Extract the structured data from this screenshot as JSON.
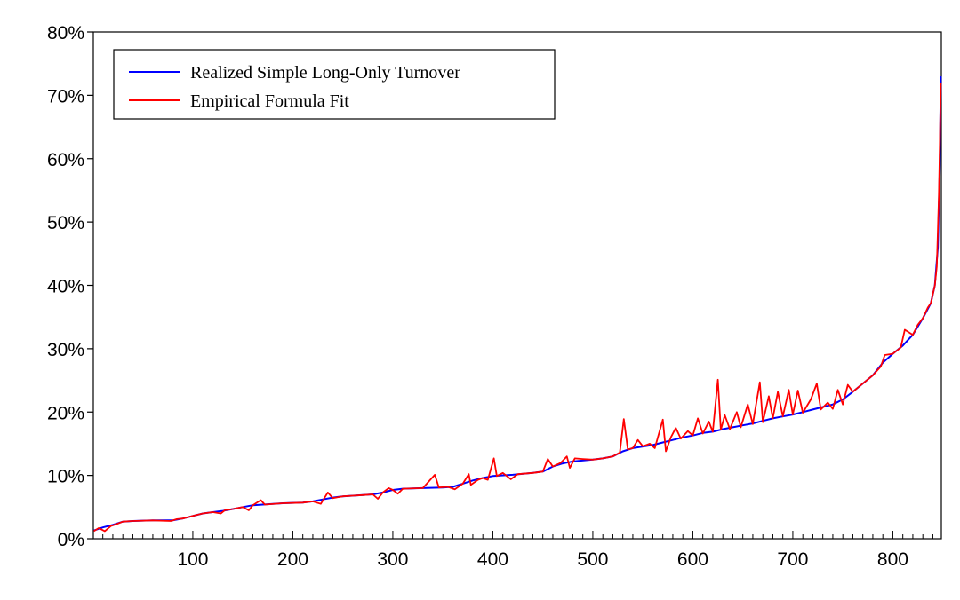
{
  "chart_data": {
    "type": "line",
    "title": "",
    "xlabel": "",
    "ylabel": "",
    "xlim": [
      1,
      848
    ],
    "ylim": [
      0,
      0.8
    ],
    "y_format": "percent",
    "x_ticks": [
      100,
      200,
      300,
      400,
      500,
      600,
      700,
      800
    ],
    "x_tick_labels": [
      "100",
      "200",
      "300",
      "400",
      "500",
      "600",
      "700",
      "800"
    ],
    "y_ticks": [
      0,
      0.1,
      0.2,
      0.3,
      0.4,
      0.5,
      0.6,
      0.7,
      0.8
    ],
    "y_tick_labels": [
      "0%",
      "10%",
      "20%",
      "30%",
      "40%",
      "50%",
      "60%",
      "70%",
      "80%"
    ],
    "grid": false,
    "legend_position": "top-left",
    "series": [
      {
        "name": "Realized Simple Long-Only Turnover",
        "color": "#0000ff",
        "points": [
          [
            1,
            0.013
          ],
          [
            10,
            0.018
          ],
          [
            20,
            0.022
          ],
          [
            30,
            0.027
          ],
          [
            40,
            0.028
          ],
          [
            60,
            0.029
          ],
          [
            80,
            0.029
          ],
          [
            90,
            0.032
          ],
          [
            100,
            0.036
          ],
          [
            110,
            0.04
          ],
          [
            120,
            0.042
          ],
          [
            130,
            0.044
          ],
          [
            140,
            0.047
          ],
          [
            150,
            0.05
          ],
          [
            160,
            0.053
          ],
          [
            170,
            0.054
          ],
          [
            190,
            0.056
          ],
          [
            210,
            0.057
          ],
          [
            220,
            0.059
          ],
          [
            230,
            0.062
          ],
          [
            240,
            0.065
          ],
          [
            250,
            0.067
          ],
          [
            260,
            0.068
          ],
          [
            270,
            0.069
          ],
          [
            280,
            0.07
          ],
          [
            290,
            0.073
          ],
          [
            300,
            0.077
          ],
          [
            310,
            0.079
          ],
          [
            330,
            0.08
          ],
          [
            350,
            0.081
          ],
          [
            360,
            0.082
          ],
          [
            370,
            0.087
          ],
          [
            380,
            0.092
          ],
          [
            390,
            0.096
          ],
          [
            400,
            0.099
          ],
          [
            420,
            0.101
          ],
          [
            440,
            0.104
          ],
          [
            450,
            0.106
          ],
          [
            460,
            0.114
          ],
          [
            470,
            0.119
          ],
          [
            480,
            0.122
          ],
          [
            500,
            0.125
          ],
          [
            510,
            0.127
          ],
          [
            520,
            0.13
          ],
          [
            530,
            0.138
          ],
          [
            540,
            0.143
          ],
          [
            560,
            0.148
          ],
          [
            570,
            0.152
          ],
          [
            580,
            0.156
          ],
          [
            590,
            0.16
          ],
          [
            600,
            0.163
          ],
          [
            610,
            0.167
          ],
          [
            620,
            0.169
          ],
          [
            630,
            0.173
          ],
          [
            640,
            0.176
          ],
          [
            650,
            0.179
          ],
          [
            660,
            0.182
          ],
          [
            670,
            0.186
          ],
          [
            680,
            0.19
          ],
          [
            690,
            0.193
          ],
          [
            700,
            0.196
          ],
          [
            710,
            0.2
          ],
          [
            720,
            0.204
          ],
          [
            730,
            0.208
          ],
          [
            740,
            0.212
          ],
          [
            750,
            0.22
          ],
          [
            760,
            0.232
          ],
          [
            770,
            0.245
          ],
          [
            780,
            0.258
          ],
          [
            790,
            0.278
          ],
          [
            800,
            0.292
          ],
          [
            810,
            0.305
          ],
          [
            820,
            0.322
          ],
          [
            830,
            0.348
          ],
          [
            838,
            0.372
          ],
          [
            842,
            0.4
          ],
          [
            845,
            0.46
          ],
          [
            847,
            0.59
          ],
          [
            848,
            0.73
          ]
        ]
      },
      {
        "name": "Empirical Formula Fit",
        "color": "#ff0000",
        "points": [
          [
            1,
            0.012
          ],
          [
            6,
            0.017
          ],
          [
            12,
            0.012
          ],
          [
            18,
            0.02
          ],
          [
            25,
            0.024
          ],
          [
            30,
            0.027
          ],
          [
            40,
            0.028
          ],
          [
            60,
            0.029
          ],
          [
            78,
            0.028
          ],
          [
            84,
            0.031
          ],
          [
            90,
            0.032
          ],
          [
            100,
            0.036
          ],
          [
            110,
            0.04
          ],
          [
            120,
            0.042
          ],
          [
            128,
            0.04
          ],
          [
            132,
            0.045
          ],
          [
            140,
            0.047
          ],
          [
            150,
            0.05
          ],
          [
            156,
            0.045
          ],
          [
            160,
            0.053
          ],
          [
            168,
            0.061
          ],
          [
            172,
            0.054
          ],
          [
            190,
            0.056
          ],
          [
            210,
            0.057
          ],
          [
            220,
            0.059
          ],
          [
            228,
            0.055
          ],
          [
            235,
            0.073
          ],
          [
            240,
            0.064
          ],
          [
            250,
            0.067
          ],
          [
            260,
            0.068
          ],
          [
            270,
            0.069
          ],
          [
            280,
            0.07
          ],
          [
            285,
            0.063
          ],
          [
            290,
            0.073
          ],
          [
            296,
            0.08
          ],
          [
            300,
            0.077
          ],
          [
            305,
            0.071
          ],
          [
            310,
            0.079
          ],
          [
            330,
            0.08
          ],
          [
            342,
            0.101
          ],
          [
            346,
            0.081
          ],
          [
            355,
            0.082
          ],
          [
            362,
            0.078
          ],
          [
            370,
            0.087
          ],
          [
            376,
            0.102
          ],
          [
            378,
            0.085
          ],
          [
            385,
            0.093
          ],
          [
            390,
            0.096
          ],
          [
            395,
            0.093
          ],
          [
            401,
            0.127
          ],
          [
            404,
            0.099
          ],
          [
            410,
            0.104
          ],
          [
            418,
            0.094
          ],
          [
            425,
            0.102
          ],
          [
            440,
            0.104
          ],
          [
            450,
            0.106
          ],
          [
            455,
            0.126
          ],
          [
            460,
            0.114
          ],
          [
            468,
            0.12
          ],
          [
            474,
            0.13
          ],
          [
            477,
            0.112
          ],
          [
            482,
            0.127
          ],
          [
            490,
            0.126
          ],
          [
            500,
            0.125
          ],
          [
            510,
            0.127
          ],
          [
            520,
            0.13
          ],
          [
            527,
            0.136
          ],
          [
            531,
            0.189
          ],
          [
            535,
            0.141
          ],
          [
            540,
            0.143
          ],
          [
            545,
            0.156
          ],
          [
            550,
            0.146
          ],
          [
            557,
            0.15
          ],
          [
            562,
            0.143
          ],
          [
            570,
            0.188
          ],
          [
            573,
            0.138
          ],
          [
            578,
            0.16
          ],
          [
            583,
            0.175
          ],
          [
            588,
            0.158
          ],
          [
            595,
            0.17
          ],
          [
            600,
            0.163
          ],
          [
            605,
            0.19
          ],
          [
            610,
            0.166
          ],
          [
            616,
            0.185
          ],
          [
            620,
            0.169
          ],
          [
            625,
            0.251
          ],
          [
            628,
            0.172
          ],
          [
            632,
            0.195
          ],
          [
            637,
            0.173
          ],
          [
            644,
            0.2
          ],
          [
            648,
            0.176
          ],
          [
            655,
            0.212
          ],
          [
            660,
            0.181
          ],
          [
            667,
            0.247
          ],
          [
            670,
            0.184
          ],
          [
            676,
            0.225
          ],
          [
            680,
            0.19
          ],
          [
            685,
            0.232
          ],
          [
            690,
            0.193
          ],
          [
            696,
            0.235
          ],
          [
            700,
            0.196
          ],
          [
            705,
            0.234
          ],
          [
            710,
            0.199
          ],
          [
            718,
            0.22
          ],
          [
            724,
            0.245
          ],
          [
            728,
            0.204
          ],
          [
            735,
            0.215
          ],
          [
            740,
            0.205
          ],
          [
            745,
            0.235
          ],
          [
            750,
            0.212
          ],
          [
            755,
            0.243
          ],
          [
            760,
            0.232
          ],
          [
            770,
            0.245
          ],
          [
            780,
            0.258
          ],
          [
            788,
            0.272
          ],
          [
            792,
            0.29
          ],
          [
            800,
            0.292
          ],
          [
            808,
            0.302
          ],
          [
            812,
            0.33
          ],
          [
            820,
            0.322
          ],
          [
            825,
            0.338
          ],
          [
            830,
            0.348
          ],
          [
            835,
            0.365
          ],
          [
            838,
            0.372
          ],
          [
            842,
            0.4
          ],
          [
            844,
            0.43
          ],
          [
            846,
            0.54
          ],
          [
            847,
            0.62
          ],
          [
            848,
            0.72
          ]
        ]
      }
    ]
  }
}
